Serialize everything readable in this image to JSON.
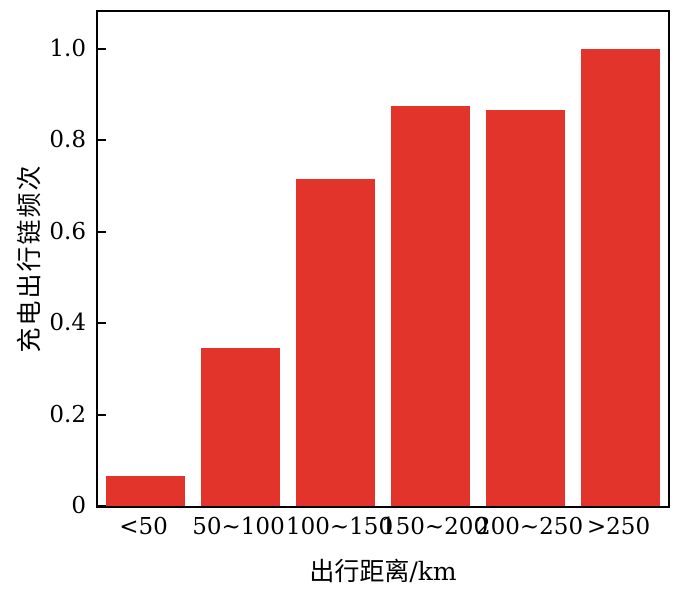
{
  "chart_data": {
    "type": "bar",
    "title": "",
    "xlabel": "出行距离/km",
    "ylabel": "充电出行链频次",
    "categories": [
      "<50",
      "50~100",
      "100~150",
      "150~200",
      "200~250",
      ">250"
    ],
    "values": [
      0.065,
      0.345,
      0.715,
      0.875,
      0.865,
      1.0
    ],
    "ylim": [
      0,
      1.08
    ],
    "ytick_values": [
      0,
      0.2,
      0.4,
      0.6,
      0.8,
      1.0
    ],
    "ytick_labels": [
      "0",
      "0.2",
      "0.4",
      "0.6",
      "0.8",
      "1.0"
    ],
    "bar_color": "#e2342a",
    "axis_color": "#000000",
    "grid": false,
    "legend": null
  }
}
